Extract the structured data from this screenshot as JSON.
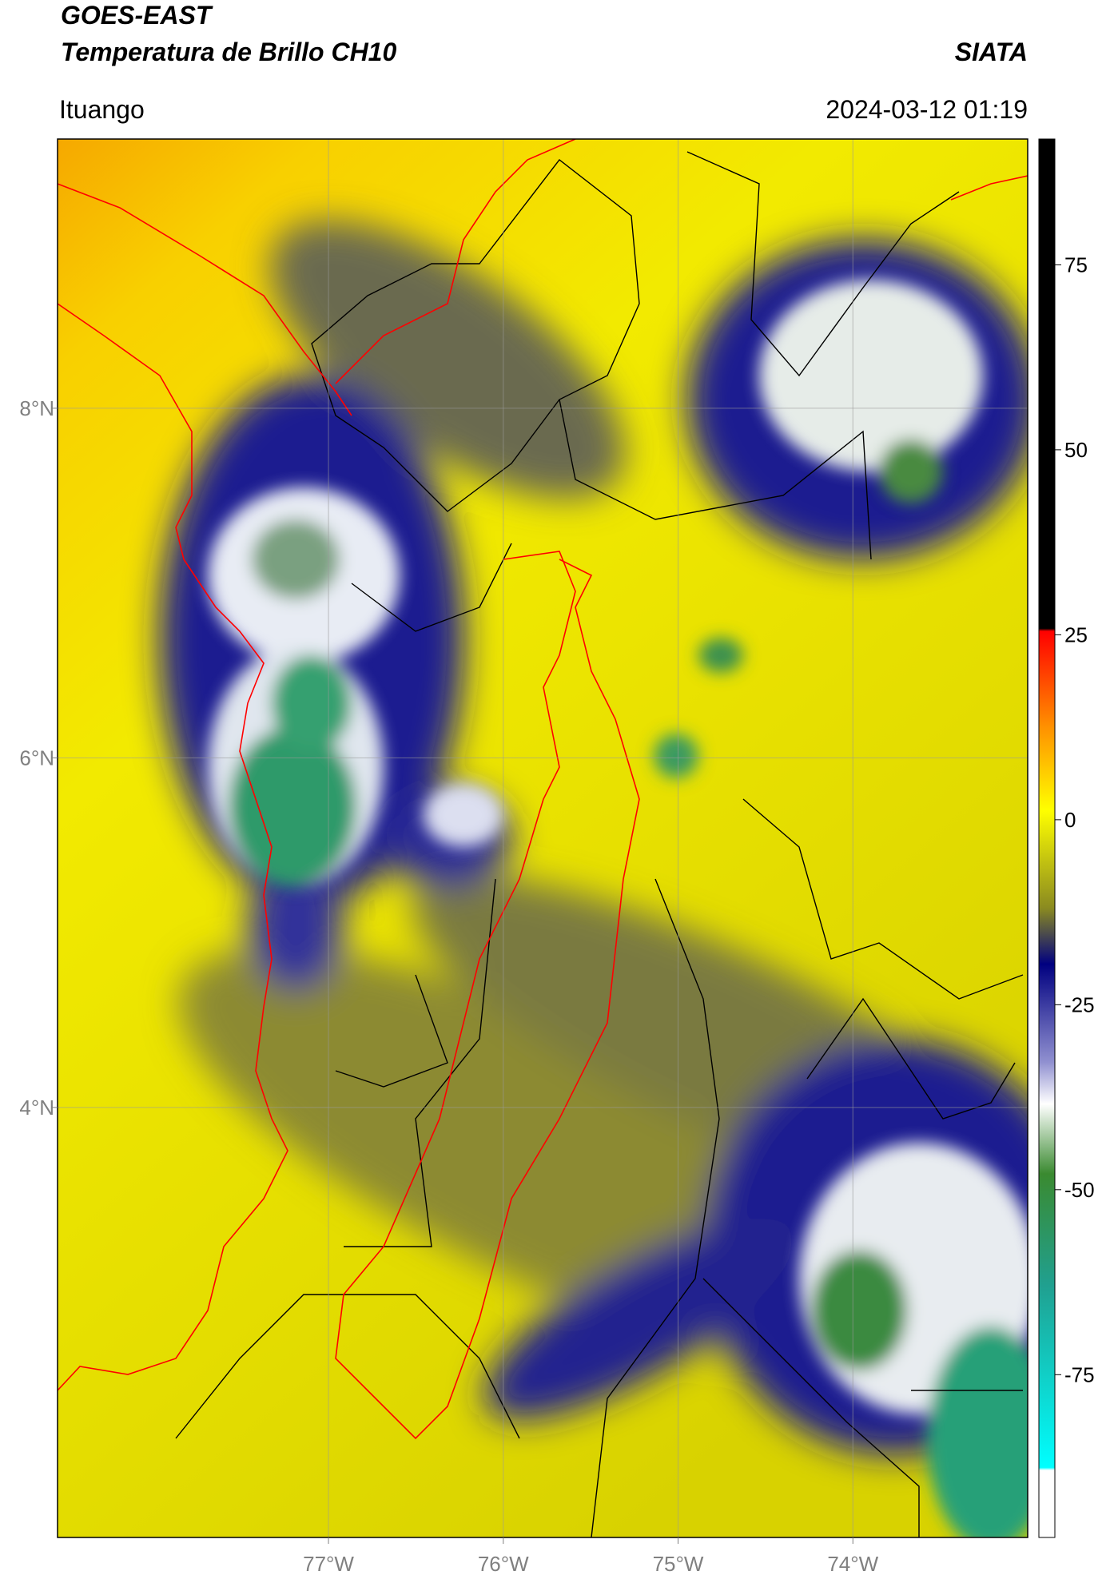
{
  "header": {
    "title": "GOES-EAST",
    "subtitle": "Temperatura de Brillo CH10",
    "source": "SIATA",
    "location": "Ituango",
    "datetime": "2024-03-12 01:19"
  },
  "map": {
    "xlim": [
      -78.55,
      -73.0
    ],
    "ylim": [
      1.54,
      9.54
    ],
    "xticks": [
      {
        "value": -77,
        "label": "77°W"
      },
      {
        "value": -76,
        "label": "76°W"
      },
      {
        "value": -75,
        "label": "75°W"
      },
      {
        "value": -74,
        "label": "74°W"
      }
    ],
    "yticks": [
      {
        "value": 8,
        "label": "8°N"
      },
      {
        "value": 6,
        "label": "6°N"
      },
      {
        "value": 4,
        "label": "4°N"
      }
    ],
    "grid": true
  },
  "colorbar": {
    "lim": [
      -97,
      92
    ],
    "ticks": [
      75,
      50,
      25,
      0,
      -25,
      -50,
      -75
    ]
  }
}
